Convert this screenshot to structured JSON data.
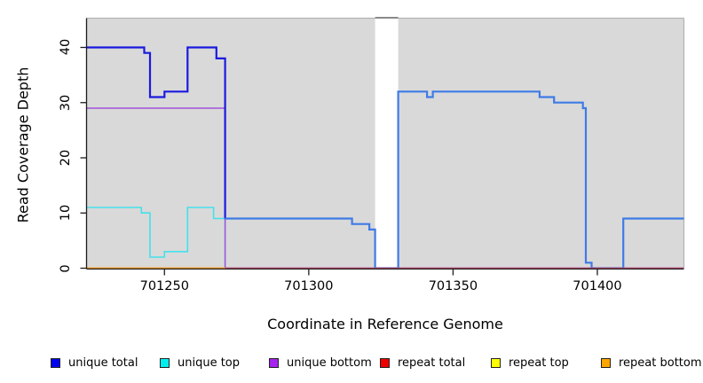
{
  "chart_data": {
    "type": "line",
    "step": true,
    "title": "",
    "xlabel": "Coordinate in Reference Genome",
    "ylabel": "Read Coverage Depth",
    "xlim": [
      701223,
      701430
    ],
    "ylim": [
      0,
      45.3
    ],
    "x_ticks": [
      701250,
      701300,
      701350,
      701400
    ],
    "y_ticks": [
      0,
      10,
      20,
      30,
      40
    ],
    "grid": false,
    "legend_position": "bottom",
    "plot_background": "#d9d9d9",
    "border_color": "#b3b3b3",
    "axis_color": "#1c1c1c",
    "gap_region": {
      "from": 701323,
      "to": 701331,
      "fill": "#ffffff",
      "top_bar_color": "#8a8a8a"
    },
    "series": [
      {
        "name": "unique total",
        "legend_color": "#0000ee",
        "line_color": "#1a1adf",
        "color_change": {
          "at": 701271,
          "after_color": "#3e7be6"
        },
        "line_width": 2.2,
        "points": [
          [
            701223,
            40
          ],
          [
            701243,
            39
          ],
          [
            701245,
            31
          ],
          [
            701250,
            32
          ],
          [
            701258,
            40
          ],
          [
            701268,
            38
          ],
          [
            701271,
            9
          ],
          [
            701315,
            8
          ],
          [
            701321,
            7
          ],
          [
            701323,
            0
          ],
          [
            701331,
            32
          ],
          [
            701341,
            31
          ],
          [
            701343,
            32
          ],
          [
            701380,
            31
          ],
          [
            701385,
            30
          ],
          [
            701395,
            29
          ],
          [
            701396,
            1
          ],
          [
            701398,
            0
          ],
          [
            701409,
            9
          ],
          [
            701430,
            9
          ]
        ]
      },
      {
        "name": "unique top",
        "legend_color": "#00eeee",
        "line_color": "#45e0ea",
        "line_width": 1.6,
        "points": [
          [
            701223,
            11
          ],
          [
            701242,
            10
          ],
          [
            701245,
            2
          ],
          [
            701250,
            3
          ],
          [
            701258,
            11
          ],
          [
            701267,
            9
          ],
          [
            701271,
            0
          ],
          [
            701430,
            0
          ]
        ]
      },
      {
        "name": "unique bottom",
        "legend_color": "#a523ec",
        "line_color": "#a352d9",
        "line_width": 1.5,
        "points": [
          [
            701223,
            29
          ],
          [
            701271,
            0
          ],
          [
            701430,
            0
          ]
        ]
      },
      {
        "name": "repeat total",
        "legend_color": "#ee0000",
        "line_color": "#c84a68",
        "line_width": 1.6,
        "points": [
          [
            701223,
            0
          ],
          [
            701430,
            0
          ]
        ]
      },
      {
        "name": "repeat top",
        "legend_color": "#ffff00",
        "line_color": "#ffff00",
        "line_width": 1.4,
        "points": [
          [
            701223,
            0
          ],
          [
            701271,
            0
          ]
        ]
      },
      {
        "name": "repeat bottom",
        "legend_color": "#ffa500",
        "line_color": "#ff9d26",
        "line_width": 1.8,
        "points": [
          [
            701223,
            0
          ],
          [
            701271,
            0
          ]
        ]
      }
    ],
    "draw_order": [
      1,
      2,
      0,
      3,
      4,
      5
    ]
  }
}
